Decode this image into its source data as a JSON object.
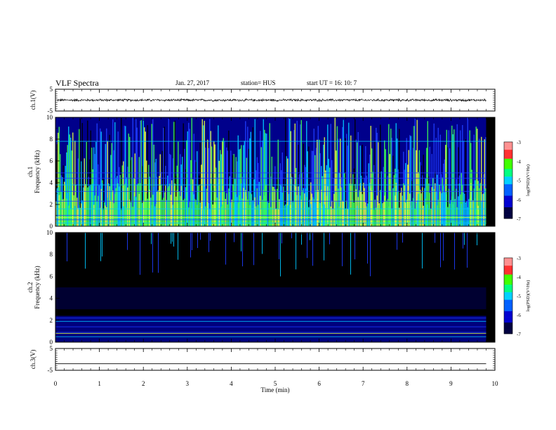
{
  "header": {
    "title": "VLF Spectra",
    "date": "Jan. 27, 2017",
    "station_label": "station= HUS",
    "start_label": "start  UT =   16: 10: 7"
  },
  "colors": {
    "background_low": "#000000",
    "deep_blue": "#00008b",
    "blue": "#1e3cff",
    "cyan": "#00c8ff",
    "green": "#3cff50",
    "yellow": "#e6ff3c",
    "red": "#ff2020"
  },
  "chart_data": [
    {
      "type": "line",
      "panel": "ch1-waveform",
      "ylabel": "ch.1(V)",
      "ylim": [
        -5,
        5
      ],
      "yticks": [
        "5",
        "-5"
      ],
      "description_values": {
        "mean": 0,
        "amplitude": 0.4
      }
    },
    {
      "type": "heatmap",
      "panel": "ch1-spectrogram",
      "ylabel": "ch.1\nFrequency (kHz)",
      "ylabel_line1": "ch.1",
      "ylabel_line2": "Frequency (kHz)",
      "ylim": [
        0,
        10
      ],
      "yticks": [
        "0",
        "2",
        "4",
        "6",
        "8",
        "10"
      ],
      "colorbar": {
        "label": "log(PSD)(V²/Hz)",
        "range": [
          -7,
          -3
        ],
        "ticks": [
          "-3",
          "-4",
          "-5",
          "-6",
          "-7"
        ]
      },
      "intensity_level": "high"
    },
    {
      "type": "heatmap",
      "panel": "ch2-spectrogram",
      "ylabel_line1": "ch.2",
      "ylabel_line2": "Frequency (kHz)",
      "ylim": [
        0,
        10
      ],
      "yticks": [
        "0",
        "2",
        "4",
        "6",
        "8",
        "10"
      ],
      "colorbar": {
        "label": "log(PSD)(V²/Hz)",
        "range": [
          -7,
          -3
        ],
        "ticks": [
          "-3",
          "-4",
          "-5",
          "-6",
          "-7"
        ]
      },
      "intensity_level": "low"
    },
    {
      "type": "line",
      "panel": "ch3-waveform",
      "ylabel": "ch.3(V)",
      "ylim": [
        -5,
        5
      ],
      "yticks": [
        "5",
        "-5"
      ],
      "description_values": {
        "mean": -2,
        "amplitude": 0
      }
    }
  ],
  "x_axis": {
    "label": "Time (min)",
    "range": [
      0,
      10
    ],
    "ticks": [
      "0",
      "1",
      "2",
      "3",
      "4",
      "5",
      "6",
      "7",
      "8",
      "9",
      "10"
    ],
    "data_end": 9.8
  }
}
